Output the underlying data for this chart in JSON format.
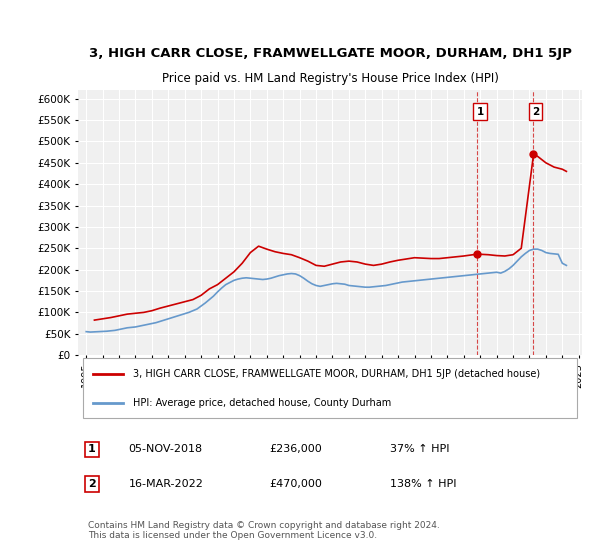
{
  "title": "3, HIGH CARR CLOSE, FRAMWELLGATE MOOR, DURHAM, DH1 5JP",
  "subtitle": "Price paid vs. HM Land Registry's House Price Index (HPI)",
  "ylabel": "",
  "ylim": [
    0,
    620000
  ],
  "yticks": [
    0,
    50000,
    100000,
    150000,
    200000,
    250000,
    300000,
    350000,
    400000,
    450000,
    500000,
    550000,
    600000
  ],
  "ytick_labels": [
    "£0",
    "£50K",
    "£100K",
    "£150K",
    "£200K",
    "£250K",
    "£300K",
    "£350K",
    "£400K",
    "£450K",
    "£500K",
    "£550K",
    "£600K"
  ],
  "background_color": "#ffffff",
  "plot_bg_color": "#f0f0f0",
  "grid_color": "#ffffff",
  "hpi_color": "#6699cc",
  "price_color": "#cc0000",
  "marker1_date": "2018-11-05",
  "marker1_price": 236000,
  "marker2_date": "2022-03-16",
  "marker2_price": 470000,
  "legend_label_price": "3, HIGH CARR CLOSE, FRAMWELLGATE MOOR, DURHAM, DH1 5JP (detached house)",
  "legend_label_hpi": "HPI: Average price, detached house, County Durham",
  "table_row1": [
    "1",
    "05-NOV-2018",
    "£236,000",
    "37% ↑ HPI"
  ],
  "table_row2": [
    "2",
    "16-MAR-2022",
    "£470,000",
    "138% ↑ HPI"
  ],
  "footnote": "Contains HM Land Registry data © Crown copyright and database right 2024.\nThis data is licensed under the Open Government Licence v3.0.",
  "hpi_data": {
    "years": [
      1995,
      1995.25,
      1995.5,
      1995.75,
      1996,
      1996.25,
      1996.5,
      1996.75,
      1997,
      1997.25,
      1997.5,
      1997.75,
      1998,
      1998.25,
      1998.5,
      1998.75,
      1999,
      1999.25,
      1999.5,
      1999.75,
      2000,
      2000.25,
      2000.5,
      2000.75,
      2001,
      2001.25,
      2001.5,
      2001.75,
      2002,
      2002.25,
      2002.5,
      2002.75,
      2003,
      2003.25,
      2003.5,
      2003.75,
      2004,
      2004.25,
      2004.5,
      2004.75,
      2005,
      2005.25,
      2005.5,
      2005.75,
      2006,
      2006.25,
      2006.5,
      2006.75,
      2007,
      2007.25,
      2007.5,
      2007.75,
      2008,
      2008.25,
      2008.5,
      2008.75,
      2009,
      2009.25,
      2009.5,
      2009.75,
      2010,
      2010.25,
      2010.5,
      2010.75,
      2011,
      2011.25,
      2011.5,
      2011.75,
      2012,
      2012.25,
      2012.5,
      2012.75,
      2013,
      2013.25,
      2013.5,
      2013.75,
      2014,
      2014.25,
      2014.5,
      2014.75,
      2015,
      2015.25,
      2015.5,
      2015.75,
      2016,
      2016.25,
      2016.5,
      2016.75,
      2017,
      2017.25,
      2017.5,
      2017.75,
      2018,
      2018.25,
      2018.5,
      2018.75,
      2019,
      2019.25,
      2019.5,
      2019.75,
      2020,
      2020.25,
      2020.5,
      2020.75,
      2021,
      2021.25,
      2021.5,
      2021.75,
      2022,
      2022.25,
      2022.5,
      2022.75,
      2023,
      2023.25,
      2023.5,
      2023.75,
      2024,
      2024.25
    ],
    "values": [
      55000,
      54000,
      54500,
      55000,
      55500,
      56000,
      57000,
      58000,
      60000,
      62000,
      64000,
      65000,
      66000,
      68000,
      70000,
      72000,
      74000,
      76000,
      79000,
      82000,
      85000,
      88000,
      91000,
      94000,
      97000,
      100000,
      104000,
      108000,
      115000,
      122000,
      130000,
      138000,
      148000,
      157000,
      165000,
      170000,
      175000,
      178000,
      180000,
      181000,
      180000,
      179000,
      178000,
      177000,
      178000,
      180000,
      183000,
      186000,
      188000,
      190000,
      191000,
      190000,
      186000,
      180000,
      173000,
      167000,
      163000,
      161000,
      163000,
      165000,
      167000,
      168000,
      167000,
      166000,
      163000,
      162000,
      161000,
      160000,
      159000,
      159000,
      160000,
      161000,
      162000,
      163000,
      165000,
      167000,
      169000,
      171000,
      172000,
      173000,
      174000,
      175000,
      176000,
      177000,
      178000,
      179000,
      180000,
      181000,
      182000,
      183000,
      184000,
      185000,
      186000,
      187000,
      188000,
      189000,
      190000,
      191000,
      192000,
      193000,
      194000,
      192000,
      196000,
      202000,
      210000,
      220000,
      230000,
      238000,
      245000,
      248000,
      248000,
      245000,
      240000,
      238000,
      237000,
      236000,
      215000,
      210000
    ]
  },
  "price_data": {
    "years": [
      1995.5,
      1996.0,
      1996.5,
      1997.0,
      1997.5,
      1998.0,
      1998.5,
      1999.0,
      1999.5,
      2000.0,
      2000.5,
      2001.0,
      2001.5,
      2002.0,
      2002.5,
      2003.0,
      2003.5,
      2004.0,
      2004.5,
      2005.0,
      2005.5,
      2006.0,
      2006.5,
      2007.0,
      2007.5,
      2008.0,
      2008.5,
      2009.0,
      2009.5,
      2010.0,
      2010.5,
      2011.0,
      2011.5,
      2012.0,
      2012.5,
      2013.0,
      2013.5,
      2014.0,
      2014.5,
      2015.0,
      2015.5,
      2016.0,
      2016.5,
      2017.0,
      2017.5,
      2018.0,
      2018.75,
      2019.0,
      2019.5,
      2020.0,
      2020.5,
      2021.0,
      2021.5,
      2022.25,
      2022.5,
      2023.0,
      2023.5,
      2024.0,
      2024.25
    ],
    "values": [
      82000,
      85000,
      88000,
      92000,
      96000,
      98000,
      100000,
      104000,
      110000,
      115000,
      120000,
      125000,
      130000,
      140000,
      155000,
      165000,
      180000,
      195000,
      215000,
      240000,
      255000,
      248000,
      242000,
      238000,
      235000,
      228000,
      220000,
      210000,
      208000,
      213000,
      218000,
      220000,
      218000,
      213000,
      210000,
      213000,
      218000,
      222000,
      225000,
      228000,
      227000,
      226000,
      226000,
      228000,
      230000,
      232000,
      236000,
      236000,
      235000,
      233000,
      232000,
      235000,
      250000,
      470000,
      465000,
      450000,
      440000,
      435000,
      430000
    ]
  }
}
